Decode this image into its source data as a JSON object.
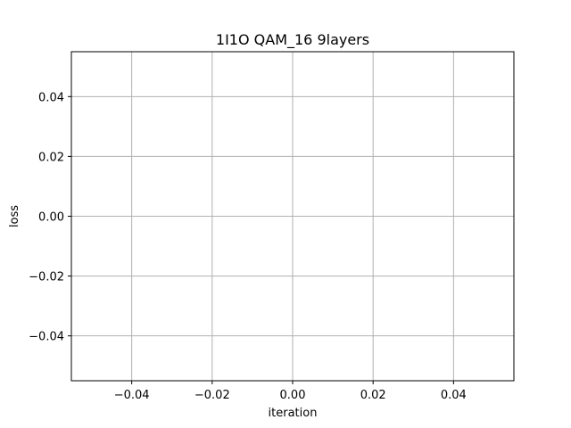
{
  "chart_data": {
    "type": "line",
    "title": "1I1O QAM_16 9layers",
    "xlabel": "iteration",
    "ylabel": "loss",
    "xlim": [
      -0.055,
      0.055
    ],
    "ylim": [
      -0.055,
      0.055
    ],
    "grid": true,
    "series": [],
    "xticks": [
      {
        "value": -0.04,
        "label": "−0.04"
      },
      {
        "value": -0.02,
        "label": "−0.02"
      },
      {
        "value": 0.0,
        "label": "0.00"
      },
      {
        "value": 0.02,
        "label": "0.02"
      },
      {
        "value": 0.04,
        "label": "0.04"
      }
    ],
    "yticks": [
      {
        "value": 0.04,
        "label": "0.04"
      },
      {
        "value": 0.02,
        "label": "0.02"
      },
      {
        "value": 0.0,
        "label": "0.00"
      },
      {
        "value": -0.02,
        "label": "−0.02"
      },
      {
        "value": -0.04,
        "label": "−0.04"
      }
    ]
  }
}
